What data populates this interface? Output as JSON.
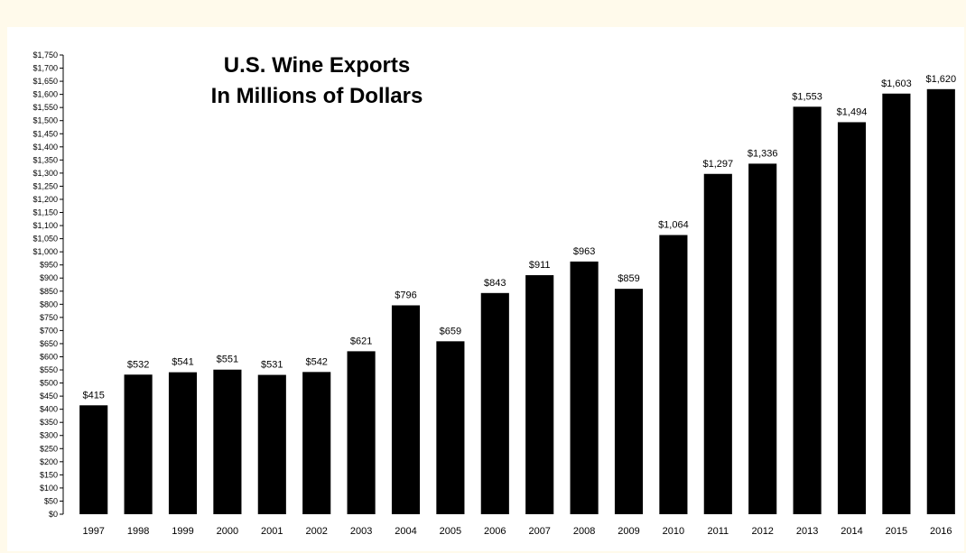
{
  "chart_data": {
    "type": "bar",
    "title": [
      "U.S. Wine Exports",
      "In Millions of Dollars"
    ],
    "xlabel": "",
    "ylabel": "",
    "categories": [
      "1997",
      "1998",
      "1999",
      "2000",
      "2001",
      "2002",
      "2003",
      "2004",
      "2005",
      "2006",
      "2007",
      "2008",
      "2009",
      "2010",
      "2011",
      "2012",
      "2013",
      "2014",
      "2015",
      "2016"
    ],
    "values": [
      415,
      532,
      541,
      551,
      531,
      542,
      621,
      796,
      659,
      843,
      911,
      963,
      859,
      1064,
      1297,
      1336,
      1553,
      1494,
      1603,
      1620
    ],
    "value_labels": [
      "$415",
      "$532",
      "$541",
      "$551",
      "$531",
      "$542",
      "$621",
      "$796",
      "$659",
      "$843",
      "$911",
      "$963",
      "$859",
      "$1,064",
      "$1,297",
      "$1,336",
      "$1,553",
      "$1,494",
      "$1,603",
      "$1,620"
    ],
    "ylim": [
      0,
      1750
    ],
    "y_tick_step": 50,
    "y_tick_labels": [
      "$0",
      "$50",
      "$100",
      "$150",
      "$200",
      "$250",
      "$300",
      "$350",
      "$400",
      "$450",
      "$500",
      "$550",
      "$600",
      "$650",
      "$700",
      "$750",
      "$800",
      "$850",
      "$900",
      "$950",
      "$1,000",
      "$1,050",
      "$1,100",
      "$1,150",
      "$1,200",
      "$1,250",
      "$1,300",
      "$1,350",
      "$1,400",
      "$1,450",
      "$1,500",
      "$1,550",
      "$1,600",
      "$1,650",
      "$1,700",
      "$1,750"
    ],
    "grid": false,
    "legend": "none",
    "bar_color": "#000000",
    "background_color": "#ffffff",
    "frame_color": "#fffaeb"
  }
}
